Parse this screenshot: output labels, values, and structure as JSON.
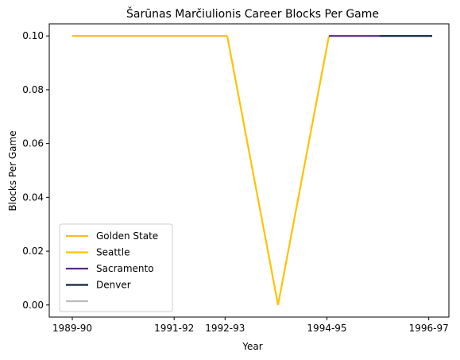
{
  "chart_data": {
    "type": "line",
    "title": "Šarūnas Marčiulionis Career Blocks Per Game",
    "xlabel": "Year",
    "ylabel": "Blocks Per Game",
    "x_ticks": [
      "1989-90",
      "1991-92",
      "1992-93",
      "1994-95",
      "1996-97"
    ],
    "y_ticks": [
      "0.00",
      "0.02",
      "0.04",
      "0.06",
      "0.08",
      "0.10"
    ],
    "ylim": [
      -0.0045,
      0.1045
    ],
    "grid": false,
    "legend_position": "lower-left",
    "series": [
      {
        "name": "Golden State",
        "color": "#FDB927",
        "points": [
          {
            "x": "1989-90",
            "y": 0.1
          },
          {
            "x": "1990-91",
            "y": 0.1
          },
          {
            "x": "1991-92",
            "y": 0.1
          },
          {
            "x": "1992-93",
            "y": 0.1
          }
        ]
      },
      {
        "name": "Seattle",
        "color": "#FFC200",
        "points": [
          {
            "x": "1992-93",
            "y": 0.1
          },
          {
            "x": "1993-94",
            "y": 0.0
          },
          {
            "x": "1994-95",
            "y": 0.1
          }
        ]
      },
      {
        "name": "Sacramento",
        "color": "#5A2D81",
        "points": [
          {
            "x": "1994-95",
            "y": 0.1
          },
          {
            "x": "1995-96",
            "y": 0.1
          }
        ]
      },
      {
        "name": "Denver",
        "color": "#0E2240",
        "points": [
          {
            "x": "1995-96",
            "y": 0.1
          },
          {
            "x": "1996-97",
            "y": 0.1
          }
        ]
      },
      {
        "name": "",
        "color": "#BBBBBB",
        "points": []
      }
    ]
  }
}
